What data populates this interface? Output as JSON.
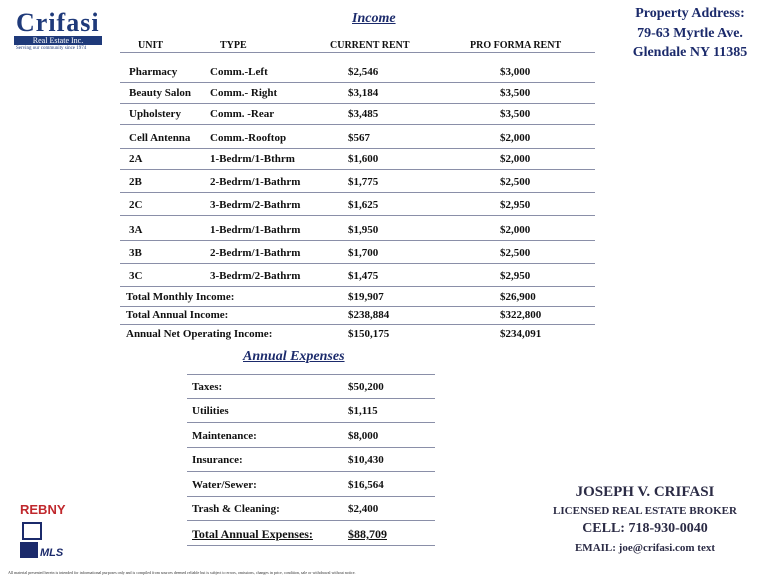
{
  "logo": {
    "name": "Crifasi",
    "sub": "Real Estate Inc.",
    "tagline": "Serving our community since 1974"
  },
  "address": {
    "label": "Property Address:",
    "street": "79-63 Myrtle Ave.",
    "city": "Glendale NY 11385"
  },
  "income": {
    "title": "Income",
    "headers": [
      "UNIT",
      "TYPE",
      "CURRENT RENT",
      "PRO FORMA  RENT"
    ],
    "rows": [
      [
        "Pharmacy",
        "Comm.-Left",
        "$2,546",
        "$3,000"
      ],
      [
        "Beauty Salon",
        "Comm.- Right",
        "$3,184",
        "$3,500"
      ],
      [
        "Upholstery",
        "Comm. -Rear",
        "$3,485",
        "$3,500"
      ],
      [
        "Cell Antenna",
        "Comm.-Rooftop",
        "$567",
        "$2,000"
      ],
      [
        "2A",
        "1-Bedrm/1-Bthrm",
        "$1,600",
        "$2,000"
      ],
      [
        "2B",
        "2-Bedrm/1-Bathrm",
        "$1,775",
        "$2,500"
      ],
      [
        "2C",
        "3-Bedrm/2-Bathrm",
        "$1,625",
        "$2,950"
      ],
      [
        "3A",
        "1-Bedrm/1-Bathrm",
        "$1,950",
        "$2,000"
      ],
      [
        "3B",
        "2-Bedrm/1-Bathrm",
        "$1,700",
        "$2,500"
      ],
      [
        "3C",
        "3-Bedrm/2-Bathrm",
        "$1,475",
        "$2,950"
      ]
    ],
    "totals": [
      [
        "Total Monthly Income:",
        "$19,907",
        "$26,900"
      ],
      [
        "Total Annual Income:",
        "$238,884",
        "$322,800"
      ],
      [
        "Annual Net Operating Income:",
        "$150,175",
        "$234,091"
      ]
    ]
  },
  "expenses": {
    "title": "Annual Expenses",
    "rows": [
      [
        "Taxes:",
        "$50,200"
      ],
      [
        "Utilities",
        "$1,115"
      ],
      [
        "Maintenance:",
        "$8,000"
      ],
      [
        "Insurance:",
        "$10,430"
      ],
      [
        "Water/Sewer:",
        "$16,564"
      ],
      [
        "Trash & Cleaning:",
        "$2,400"
      ]
    ],
    "total": [
      "Total Annual Expenses:",
      "$88,709"
    ]
  },
  "broker": {
    "name": "JOSEPH V. CRIFASI",
    "title": "LICENSED REAL ESTATE BROKER",
    "cell": "CELL: 718-930-0040",
    "email": "EMAIL: joe@crifasi.com text"
  },
  "badges": {
    "rebny": "REBNY",
    "mls": "MLS"
  },
  "disclaimer": "All material presented herein is intended for informational purposes only and is compiled from sources deemed reliable but is subject to errors, omissions, changes in price, condition, sale or withdrawal without notice."
}
